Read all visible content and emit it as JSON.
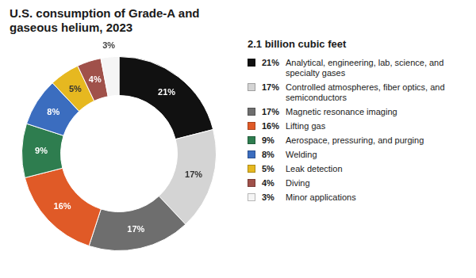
{
  "chart_data": {
    "type": "doughnut",
    "title": "U.S. consumption of Grade-A and gaseous helium, 2023",
    "subtitle": "2.1 billion cubic feet",
    "categories": [
      "Analytical, engineering, lab, science, and specialty gases",
      "Controlled atmospheres, fiber optics, and semiconductors",
      "Magnetic resonance imaging",
      "Lifting gas",
      "Aerospace, pressuring, and purging",
      "Welding",
      "Leak detection",
      "Diving",
      "Minor applications"
    ],
    "values": [
      21,
      17,
      17,
      16,
      9,
      8,
      5,
      4,
      3
    ],
    "value_labels": [
      "21%",
      "17%",
      "17%",
      "16%",
      "9%",
      "8%",
      "5%",
      "4%",
      "3%"
    ],
    "colors": [
      "#111111",
      "#d4d4d4",
      "#6e6e6e",
      "#e05a27",
      "#2e7d4f",
      "#3b6dbf",
      "#e6b820",
      "#a0514a",
      "#f5f5f5"
    ],
    "data_labels": true,
    "legend": "right"
  }
}
